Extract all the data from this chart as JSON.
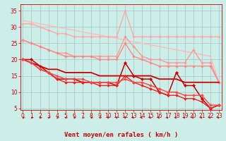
{
  "title": "",
  "xlabel": "Vent moyen/en rafales ( km/h )",
  "ylabel": "",
  "bg_color": "#cceee8",
  "grid_color": "#aacccc",
  "x": [
    0,
    1,
    2,
    3,
    4,
    5,
    6,
    7,
    8,
    9,
    10,
    11,
    12,
    13,
    14,
    15,
    16,
    17,
    18,
    19,
    20,
    21,
    22,
    23
  ],
  "lines": [
    {
      "y": [
        32,
        31.5,
        31,
        30.5,
        30,
        29.5,
        29,
        28.5,
        28,
        27.5,
        27,
        26.5,
        26,
        25.5,
        25,
        24.5,
        24,
        23.5,
        23,
        22.5,
        22,
        21.5,
        21,
        13
      ],
      "color": "#ffbbbb",
      "lw": 1.0,
      "marker": null
    },
    {
      "y": [
        31,
        31,
        30,
        29,
        28,
        28,
        27,
        27,
        27,
        27,
        27,
        27,
        35,
        27,
        27,
        27,
        27,
        27,
        27,
        27,
        27,
        27,
        27,
        27
      ],
      "color": "#ffaaaa",
      "lw": 1.0,
      "marker": "D",
      "ms": 2.0
    },
    {
      "y": [
        26,
        25,
        24,
        23,
        22,
        22,
        21,
        21,
        21,
        21,
        21,
        21,
        27,
        24,
        21,
        20,
        20,
        19,
        19,
        19,
        23,
        19,
        19,
        13
      ],
      "color": "#ff9999",
      "lw": 1.0,
      "marker": "D",
      "ms": 2.0
    },
    {
      "y": [
        26,
        25,
        24,
        23,
        22,
        21,
        21,
        21,
        21,
        20,
        20,
        20,
        25,
        21,
        20,
        19,
        18,
        18,
        18,
        18,
        18,
        18,
        18,
        13
      ],
      "color": "#ff8888",
      "lw": 1.0,
      "marker": "D",
      "ms": 2.0
    },
    {
      "y": [
        20,
        19,
        18,
        17,
        17,
        16,
        16,
        16,
        16,
        15,
        15,
        15,
        15,
        15,
        15,
        15,
        14,
        14,
        14,
        13,
        13,
        13,
        13,
        13
      ],
      "color": "#cc0000",
      "lw": 1.3,
      "marker": null
    },
    {
      "y": [
        20,
        20,
        18,
        16,
        14,
        14,
        14,
        13,
        13,
        13,
        13,
        12,
        19,
        15,
        14,
        14,
        10,
        9,
        16,
        12,
        12,
        8,
        5,
        6
      ],
      "color": "#cc0000",
      "lw": 1.1,
      "marker": "D",
      "ms": 2.2
    },
    {
      "y": [
        20,
        19,
        17,
        16,
        14,
        13,
        13,
        13,
        13,
        12,
        12,
        12,
        15,
        13,
        12,
        11,
        10,
        9,
        9,
        8,
        8,
        7,
        5,
        6
      ],
      "color": "#ee2222",
      "lw": 1.0,
      "marker": "D",
      "ms": 2.0
    },
    {
      "y": [
        20,
        19,
        17,
        16,
        15,
        14,
        14,
        14,
        13,
        13,
        13,
        13,
        14,
        13,
        13,
        12,
        11,
        10,
        10,
        9,
        9,
        9,
        6,
        6
      ],
      "color": "#ff4444",
      "lw": 1.0,
      "marker": "D",
      "ms": 2.0
    }
  ],
  "xlim": [
    -0.3,
    23.3
  ],
  "ylim": [
    4.5,
    37
  ],
  "yticks": [
    5,
    10,
    15,
    20,
    25,
    30,
    35
  ],
  "xticks": [
    0,
    1,
    2,
    3,
    4,
    5,
    6,
    7,
    8,
    9,
    10,
    11,
    12,
    13,
    14,
    15,
    16,
    17,
    18,
    19,
    20,
    21,
    22,
    23
  ],
  "tick_color": "#cc0000",
  "label_color": "#cc0000",
  "xlabel_fontsize": 6.5,
  "tick_fontsize": 5.5,
  "arrow_color": "#cc0000",
  "arrow_directions": [
    225,
    225,
    225,
    225,
    225,
    225,
    225,
    225,
    225,
    225,
    270,
    270,
    270,
    315,
    315,
    315,
    315,
    315,
    315,
    315,
    315,
    315,
    315,
    315
  ]
}
